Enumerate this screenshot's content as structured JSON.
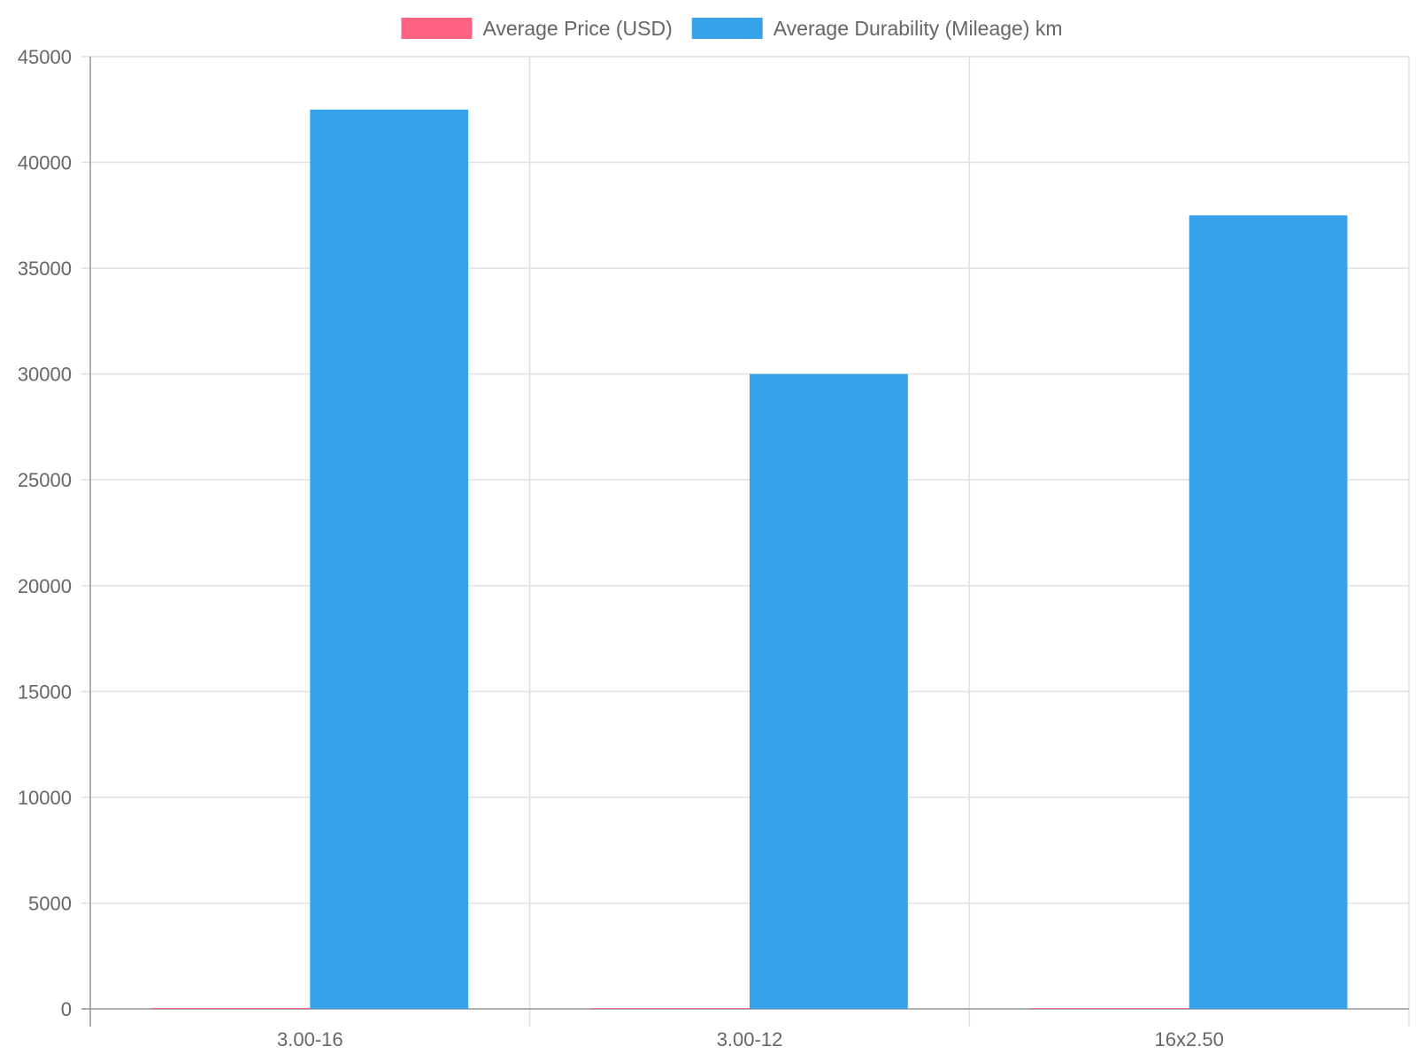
{
  "chart_data": {
    "type": "bar",
    "categories": [
      "3.00-16",
      "3.00-12",
      "16x2.50"
    ],
    "series": [
      {
        "name": "Average Price (USD)",
        "color": "#ff6384",
        "values": [
          45,
          35,
          40
        ]
      },
      {
        "name": "Average Durability (Mileage) km",
        "color": "#36a2eb",
        "values": [
          42500,
          30000,
          37500
        ]
      }
    ],
    "ylim": [
      0,
      45000
    ],
    "yticks": [
      0,
      5000,
      10000,
      15000,
      20000,
      25000,
      30000,
      35000,
      40000,
      45000
    ],
    "grid": true,
    "legend_position": "top"
  }
}
